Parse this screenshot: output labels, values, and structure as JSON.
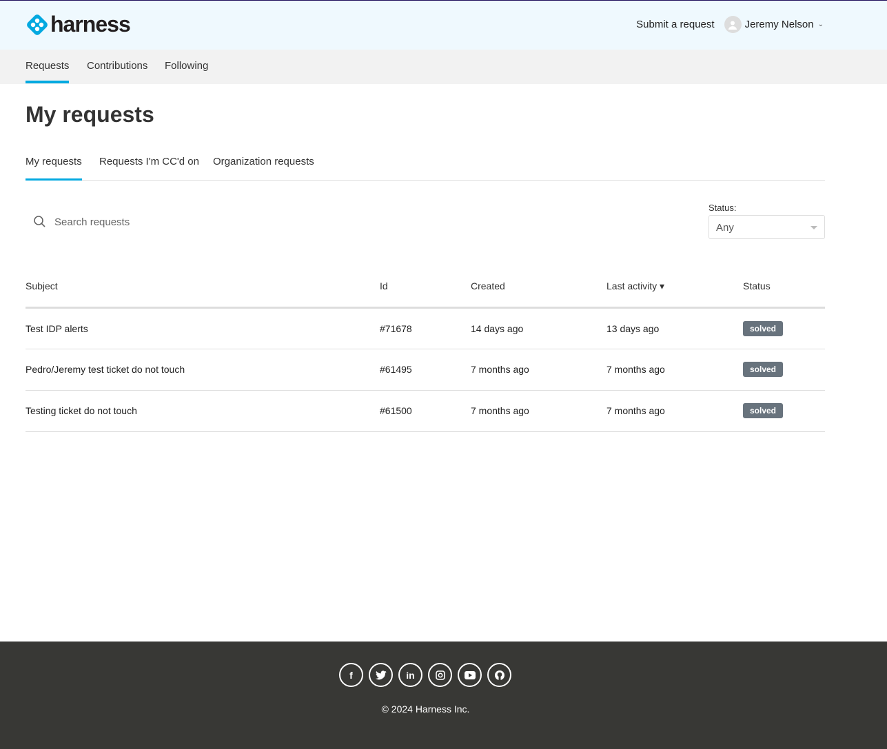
{
  "header": {
    "logo_text": "harness",
    "submit_label": "Submit a request",
    "user_name": "Jeremy Nelson"
  },
  "nav": {
    "items": [
      {
        "label": "Requests"
      },
      {
        "label": "Contributions"
      },
      {
        "label": "Following"
      }
    ]
  },
  "page": {
    "title": "My requests"
  },
  "tabs": [
    {
      "label": "My requests"
    },
    {
      "label": "Requests I'm CC'd on"
    },
    {
      "label": "Organization requests"
    }
  ],
  "search": {
    "placeholder": "Search requests"
  },
  "status_filter": {
    "label": "Status:",
    "value": "Any"
  },
  "table": {
    "headers": {
      "subject": "Subject",
      "id": "Id",
      "created": "Created",
      "last_activity": "Last activity ▾",
      "status": "Status"
    },
    "rows": [
      {
        "subject": "Test IDP alerts",
        "id": "#71678",
        "created": "14 days ago",
        "last_activity": "13 days ago",
        "status": "solved"
      },
      {
        "subject": "Pedro/Jeremy test ticket do not touch",
        "id": "#61495",
        "created": "7 months ago",
        "last_activity": "7 months ago",
        "status": "solved"
      },
      {
        "subject": "Testing ticket do not touch",
        "id": "#61500",
        "created": "7 months ago",
        "last_activity": "7 months ago",
        "status": "solved"
      }
    ]
  },
  "footer": {
    "social": [
      "facebook",
      "twitter",
      "linkedin",
      "instagram",
      "youtube",
      "github"
    ],
    "copyright": "© 2024 Harness Inc."
  },
  "colors": {
    "accent": "#03a9e0",
    "badge": "#68737d",
    "footer_bg": "#383835",
    "header_bg": "#eff9fe"
  }
}
